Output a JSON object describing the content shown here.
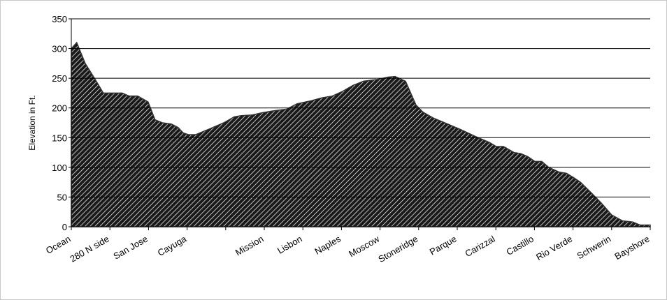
{
  "chart_data": {
    "type": "area",
    "ylabel": "Elevation in Ft.",
    "categories": [
      "Ocean",
      "280 N side",
      "San Jose",
      "Cayuga",
      null,
      "Mission",
      "Lisbon",
      "Naples",
      "Moscow",
      "Stoneridge",
      "Parque",
      "Carizzal",
      "Castillo",
      "Rio Verde",
      "Schwerin",
      "Bayshore"
    ],
    "x": [
      0,
      0.14,
      0.36,
      0.6,
      0.83,
      1.32,
      1.5,
      1.72,
      1.99,
      2.17,
      2.36,
      2.59,
      2.77,
      2.9,
      3.04,
      3.22,
      3.59,
      3.95,
      4.22,
      4.4,
      4.67,
      4.95,
      5.22,
      5.58,
      5.85,
      6.21,
      6.49,
      6.76,
      7.03,
      7.3,
      7.57,
      7.93,
      8.21,
      8.39,
      8.66,
      8.93,
      9.11,
      9.38,
      9.75,
      10.11,
      10.47,
      10.83,
      11.01,
      11.2,
      11.47,
      11.65,
      11.83,
      12.01,
      12.19,
      12.37,
      12.64,
      12.83,
      13.01,
      13.19,
      13.46,
      13.73,
      14.0,
      14.28,
      14.55,
      14.73,
      15
    ],
    "values": [
      300,
      310,
      275,
      250,
      225,
      225,
      220,
      220,
      210,
      180,
      175,
      173,
      167,
      158,
      155,
      155,
      165,
      175,
      185,
      187,
      188,
      192,
      195,
      198,
      207,
      212,
      217,
      220,
      228,
      238,
      245,
      248,
      252,
      253,
      245,
      205,
      193,
      183,
      173,
      163,
      152,
      142,
      135,
      135,
      125,
      123,
      118,
      110,
      110,
      100,
      92,
      90,
      83,
      75,
      58,
      40,
      20,
      10,
      8,
      3,
      3
    ],
    "color": "#333333",
    "xlim": [
      0,
      15
    ],
    "ylim": [
      0,
      350
    ],
    "yticks": [
      0,
      50,
      100,
      150,
      200,
      250,
      300,
      350
    ],
    "grid": true
  }
}
